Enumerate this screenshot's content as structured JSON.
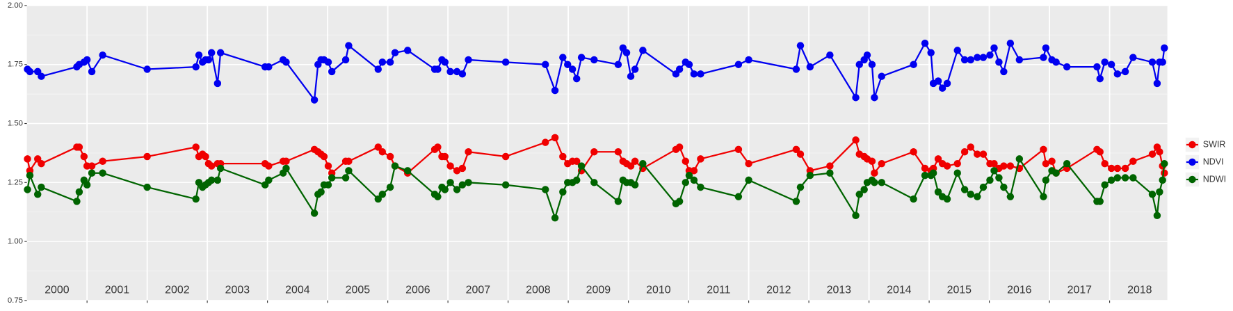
{
  "chart_data": {
    "type": "line",
    "x": [
      2000.01,
      2000.05,
      2000.18,
      2000.24,
      2000.83,
      2000.87,
      2000.95,
      2001.0,
      2001.08,
      2001.26,
      2002.0,
      2002.81,
      2002.86,
      2002.92,
      2002.97,
      2003.02,
      2003.07,
      2003.17,
      2003.22,
      2003.96,
      2004.02,
      2004.26,
      2004.31,
      2004.78,
      2004.84,
      2004.89,
      2004.94,
      2005.01,
      2005.07,
      2005.3,
      2005.35,
      2005.84,
      2005.91,
      2006.04,
      2006.12,
      2006.33,
      2006.78,
      2006.83,
      2006.9,
      2006.95,
      2007.04,
      2007.15,
      2007.24,
      2007.34,
      2007.96,
      2008.62,
      2008.78,
      2008.91,
      2008.99,
      2009.07,
      2009.14,
      2009.22,
      2009.43,
      2009.83,
      2009.91,
      2009.97,
      2010.04,
      2010.11,
      2010.24,
      2010.79,
      2010.85,
      2010.95,
      2011.01,
      2011.09,
      2011.2,
      2011.83,
      2012.0,
      2012.79,
      2012.86,
      2013.02,
      2013.35,
      2013.78,
      2013.84,
      2013.92,
      2013.97,
      2014.05,
      2014.09,
      2014.21,
      2014.74,
      2014.93,
      2015.03,
      2015.07,
      2015.15,
      2015.22,
      2015.3,
      2015.47,
      2015.59,
      2015.69,
      2015.8,
      2015.9,
      2016.01,
      2016.08,
      2016.16,
      2016.24,
      2016.35,
      2016.5,
      2016.9,
      2016.94,
      2017.04,
      2017.11,
      2017.29,
      2017.79,
      2017.84,
      2017.92,
      2018.03,
      2018.13,
      2018.26,
      2018.39,
      2018.71,
      2018.79,
      2018.83,
      2018.88,
      2018.91
    ],
    "series": [
      {
        "name": "SWIR",
        "color": "#f00000",
        "values": [
          1.35,
          1.3,
          1.35,
          1.33,
          1.4,
          1.4,
          1.36,
          1.32,
          1.32,
          1.34,
          1.36,
          1.4,
          1.36,
          1.37,
          1.36,
          1.33,
          1.32,
          1.33,
          1.33,
          1.33,
          1.32,
          1.34,
          1.34,
          1.39,
          1.38,
          1.37,
          1.36,
          1.32,
          1.29,
          1.34,
          1.34,
          1.4,
          1.38,
          1.36,
          1.32,
          1.29,
          1.39,
          1.4,
          1.36,
          1.36,
          1.32,
          1.3,
          1.31,
          1.38,
          1.36,
          1.42,
          1.44,
          1.36,
          1.33,
          1.34,
          1.34,
          1.3,
          1.38,
          1.38,
          1.34,
          1.33,
          1.32,
          1.34,
          1.31,
          1.39,
          1.4,
          1.34,
          1.3,
          1.3,
          1.35,
          1.39,
          1.33,
          1.39,
          1.37,
          1.3,
          1.32,
          1.43,
          1.37,
          1.36,
          1.35,
          1.34,
          1.29,
          1.33,
          1.38,
          1.31,
          1.3,
          1.31,
          1.35,
          1.33,
          1.32,
          1.33,
          1.38,
          1.4,
          1.37,
          1.37,
          1.33,
          1.33,
          1.31,
          1.32,
          1.32,
          1.31,
          1.39,
          1.33,
          1.34,
          1.29,
          1.31,
          1.39,
          1.38,
          1.33,
          1.31,
          1.31,
          1.31,
          1.34,
          1.37,
          1.4,
          1.38,
          1.32,
          1.29
        ]
      },
      {
        "name": "NDVI",
        "color": "#0000f0",
        "values": [
          1.73,
          1.72,
          1.72,
          1.7,
          1.74,
          1.75,
          1.76,
          1.77,
          1.72,
          1.79,
          1.73,
          1.74,
          1.79,
          1.76,
          1.77,
          1.77,
          1.8,
          1.67,
          1.8,
          1.74,
          1.74,
          1.77,
          1.76,
          1.6,
          1.75,
          1.77,
          1.77,
          1.76,
          1.72,
          1.77,
          1.83,
          1.73,
          1.76,
          1.76,
          1.8,
          1.81,
          1.73,
          1.73,
          1.77,
          1.76,
          1.72,
          1.72,
          1.71,
          1.77,
          1.76,
          1.75,
          1.64,
          1.78,
          1.75,
          1.73,
          1.69,
          1.78,
          1.77,
          1.75,
          1.82,
          1.8,
          1.7,
          1.73,
          1.81,
          1.71,
          1.73,
          1.76,
          1.75,
          1.71,
          1.71,
          1.75,
          1.77,
          1.73,
          1.83,
          1.74,
          1.79,
          1.61,
          1.75,
          1.77,
          1.79,
          1.75,
          1.61,
          1.7,
          1.75,
          1.84,
          1.8,
          1.67,
          1.68,
          1.65,
          1.67,
          1.81,
          1.77,
          1.77,
          1.78,
          1.78,
          1.79,
          1.82,
          1.76,
          1.72,
          1.84,
          1.77,
          1.78,
          1.82,
          1.77,
          1.76,
          1.74,
          1.74,
          1.69,
          1.76,
          1.75,
          1.71,
          1.72,
          1.78,
          1.76,
          1.67,
          1.76,
          1.76,
          1.82
        ]
      },
      {
        "name": "NDWI",
        "color": "#006400",
        "values": [
          1.22,
          1.28,
          1.2,
          1.23,
          1.17,
          1.21,
          1.26,
          1.24,
          1.29,
          1.29,
          1.23,
          1.18,
          1.25,
          1.23,
          1.24,
          1.25,
          1.26,
          1.26,
          1.31,
          1.24,
          1.26,
          1.29,
          1.31,
          1.12,
          1.2,
          1.21,
          1.24,
          1.24,
          1.27,
          1.27,
          1.3,
          1.18,
          1.2,
          1.23,
          1.32,
          1.3,
          1.2,
          1.19,
          1.23,
          1.22,
          1.25,
          1.22,
          1.24,
          1.25,
          1.24,
          1.22,
          1.1,
          1.21,
          1.25,
          1.25,
          1.26,
          1.32,
          1.25,
          1.17,
          1.26,
          1.25,
          1.25,
          1.24,
          1.33,
          1.16,
          1.17,
          1.25,
          1.28,
          1.26,
          1.23,
          1.19,
          1.26,
          1.17,
          1.23,
          1.28,
          1.29,
          1.11,
          1.2,
          1.22,
          1.25,
          1.26,
          1.25,
          1.25,
          1.18,
          1.28,
          1.28,
          1.29,
          1.21,
          1.19,
          1.18,
          1.29,
          1.22,
          1.2,
          1.19,
          1.23,
          1.26,
          1.3,
          1.27,
          1.23,
          1.19,
          1.35,
          1.19,
          1.26,
          1.3,
          1.29,
          1.33,
          1.17,
          1.17,
          1.24,
          1.26,
          1.27,
          1.27,
          1.27,
          1.2,
          1.11,
          1.21,
          1.26,
          1.33
        ]
      }
    ],
    "xlim": [
      2000,
      2018.96
    ],
    "xticks": [
      2001,
      2002,
      2003,
      2004,
      2005,
      2006,
      2007,
      2008,
      2009,
      2010,
      2011,
      2012,
      2013,
      2014,
      2015,
      2016,
      2017,
      2018
    ],
    "ylim": [
      0.75,
      2.0
    ],
    "yticks": [
      {
        "value": 0.75,
        "label": "0.75"
      },
      {
        "value": 1.0,
        "label": "1.00"
      },
      {
        "value": 1.25,
        "label": "1.25"
      },
      {
        "value": 1.5,
        "label": "1.50"
      },
      {
        "value": 1.75,
        "label": "1.75"
      },
      {
        "value": 2.0,
        "label": "2.00"
      }
    ],
    "annotations": [
      "2000",
      "2001",
      "2002",
      "2003",
      "2004",
      "2005",
      "2006",
      "2007",
      "2008",
      "2009",
      "2010",
      "2011",
      "2012",
      "2013",
      "2014",
      "2015",
      "2016",
      "2017",
      "2018"
    ],
    "grid": true,
    "legend": "right"
  }
}
